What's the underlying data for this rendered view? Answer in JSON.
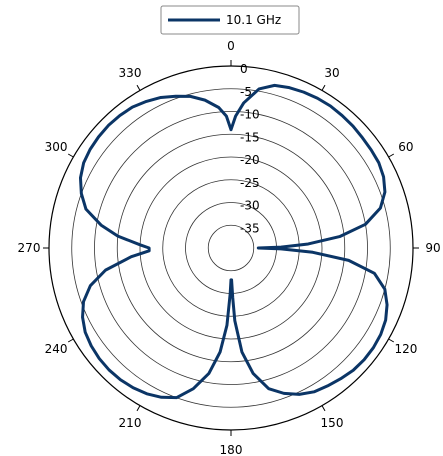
{
  "chart_data": {
    "type": "polar-line",
    "theta_zero": "top",
    "theta_direction": "clockwise",
    "theta_ticks": [
      0,
      30,
      60,
      90,
      120,
      150,
      180,
      210,
      240,
      270,
      300,
      330
    ],
    "theta_tick_labels": [
      "0",
      "30",
      "60",
      "90",
      "120",
      "150",
      "180",
      "210",
      "240",
      "270",
      "300",
      "330"
    ],
    "r_range": [
      -40,
      0
    ],
    "r_ticks": [
      0,
      -5,
      -10,
      -15,
      -20,
      -25,
      -30,
      -35
    ],
    "r_tick_labels": [
      "0",
      "-5",
      "-10",
      "-15",
      "-20",
      "-25",
      "-30",
      "-35"
    ],
    "grid": true,
    "legend_position": "top",
    "series": [
      {
        "name": "10.1 GHz",
        "color": "#0b3566",
        "theta": [
          0,
          2,
          5,
          10,
          15,
          20,
          25,
          30,
          35,
          40,
          45,
          50,
          55,
          60,
          65,
          70,
          75,
          80,
          84,
          87,
          89,
          90,
          91,
          93,
          96,
          100,
          105,
          110,
          115,
          120,
          125,
          130,
          135,
          140,
          145,
          150,
          155,
          160,
          165,
          170,
          174,
          177,
          178,
          179,
          180,
          181,
          183,
          186,
          190,
          195,
          200,
          205,
          210,
          215,
          220,
          225,
          230,
          235,
          240,
          245,
          250,
          255,
          260,
          265,
          268,
          270,
          272,
          276,
          280,
          285,
          290,
          295,
          300,
          305,
          310,
          315,
          320,
          325,
          330,
          335,
          340,
          345,
          350,
          355,
          358,
          360
        ],
        "r": [
          -14,
          -11,
          -8,
          -4.5,
          -3,
          -2.5,
          -2.2,
          -2,
          -1.9,
          -2,
          -2.1,
          -2.3,
          -2.4,
          -2.5,
          -3,
          -4,
          -6,
          -10,
          -16,
          -23,
          -29,
          -34,
          -29,
          -22,
          -14,
          -8,
          -5,
          -3.5,
          -2.5,
          -2,
          -1.8,
          -1.8,
          -2,
          -2.5,
          -3,
          -3.5,
          -4.5,
          -6,
          -8,
          -12,
          -17,
          -24,
          -29,
          -33,
          -33,
          -30,
          -23,
          -17,
          -12,
          -8,
          -5,
          -3.8,
          -3,
          -2.5,
          -2.2,
          -2.1,
          -2.2,
          -2.5,
          -3,
          -4,
          -5.5,
          -8,
          -12,
          -18,
          -22,
          -22,
          -20,
          -15,
          -11,
          -7,
          -5,
          -3.5,
          -2.6,
          -2.2,
          -2,
          -1.9,
          -2,
          -2.2,
          -2.8,
          -3.5,
          -4.5,
          -5.5,
          -7,
          -9,
          -11,
          -14
        ]
      }
    ]
  }
}
